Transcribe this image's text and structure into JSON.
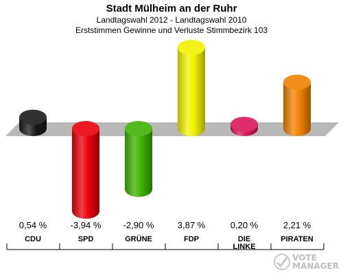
{
  "header": {
    "title": "Stadt Mülheim an der Ruhr",
    "subtitle1": "Landtagswahl 2012 - Landtagswahl 2010",
    "subtitle2": "Erststimmen Gewinne und Verluste Stimmbezirk 103"
  },
  "chart_data": {
    "type": "bar",
    "categories": [
      "CDU",
      "SPD",
      "GRÜNE",
      "FDP",
      "DIE LINKE",
      "PIRATEN"
    ],
    "values": [
      0.54,
      -3.94,
      -2.9,
      3.87,
      0.2,
      2.21
    ],
    "value_labels": [
      "0,54 %",
      "-3,94 %",
      "-2,90 %",
      "3,87 %",
      "0,20 %",
      "2,21 %"
    ],
    "category_labels": [
      [
        "CDU"
      ],
      [
        "SPD"
      ],
      [
        "GRÜNE"
      ],
      [
        "FDP"
      ],
      [
        "DIE",
        "LINKE"
      ],
      [
        "PIRATEN"
      ]
    ],
    "colors": [
      "#1a1a1a",
      "#e8000b",
      "#3cb300",
      "#f2f200",
      "#d8185a",
      "#f08000"
    ],
    "ylim": [
      -4,
      4
    ],
    "grid": false,
    "legend": "none"
  },
  "watermark": {
    "text1": "VOTE",
    "text2": "MANAGER"
  }
}
